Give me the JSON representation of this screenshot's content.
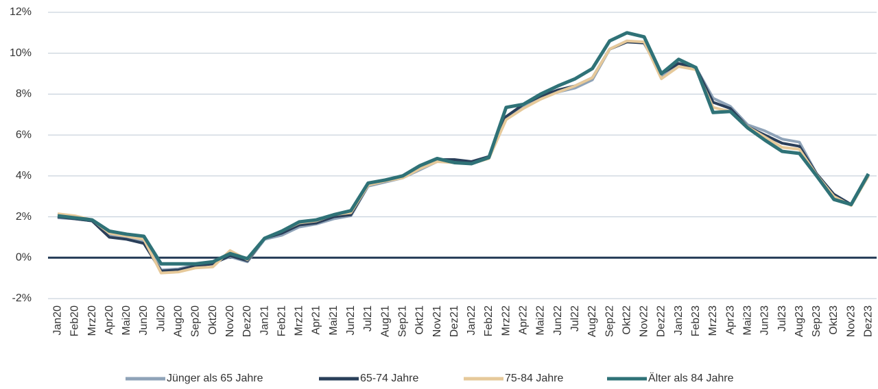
{
  "chart_data": {
    "type": "line",
    "categories": [
      "Jan20",
      "Feb20",
      "Mrz20",
      "Apr20",
      "Mai20",
      "Jun20",
      "Jul20",
      "Aug20",
      "Sep20",
      "Okt20",
      "Nov20",
      "Dez20",
      "Jan21",
      "Feb21",
      "Mrz21",
      "Apr21",
      "Mai21",
      "Jun21",
      "Jul21",
      "Aug21",
      "Sep21",
      "Okt21",
      "Nov21",
      "Dez21",
      "Jan22",
      "Feb22",
      "Mrz22",
      "Apr22",
      "Mai22",
      "Jun22",
      "Jul22",
      "Aug22",
      "Sep22",
      "Okt22",
      "Nov22",
      "Dez22",
      "Jan23",
      "Feb23",
      "Mrz23",
      "Apr23",
      "Mai23",
      "Jun23",
      "Jul23",
      "Aug23",
      "Sep23",
      "Okt23",
      "Nov23",
      "Dez23"
    ],
    "series": [
      {
        "name": "Jünger als 65 Jahre",
        "color": "#8fa3b8",
        "values": [
          1.95,
          1.9,
          1.8,
          1.1,
          1.0,
          0.8,
          -0.6,
          -0.55,
          -0.35,
          -0.25,
          0.05,
          -0.2,
          0.9,
          1.1,
          1.5,
          1.65,
          1.9,
          2.05,
          3.5,
          3.7,
          3.9,
          4.3,
          4.7,
          4.7,
          4.7,
          4.9,
          6.9,
          7.4,
          7.8,
          8.1,
          8.3,
          8.7,
          10.2,
          10.6,
          10.5,
          8.9,
          9.5,
          9.3,
          7.8,
          7.4,
          6.5,
          6.2,
          5.8,
          5.65,
          4.1,
          3.1,
          2.6,
          4.0
        ]
      },
      {
        "name": "65-74 Jahre",
        "color": "#2a3f5a",
        "values": [
          2.0,
          1.9,
          1.8,
          1.0,
          0.9,
          0.7,
          -0.65,
          -0.6,
          -0.4,
          -0.3,
          0.1,
          -0.15,
          0.95,
          1.2,
          1.6,
          1.7,
          2.0,
          2.1,
          3.55,
          3.75,
          3.95,
          4.4,
          4.8,
          4.8,
          4.7,
          4.95,
          6.9,
          7.5,
          7.9,
          8.2,
          8.4,
          8.8,
          10.2,
          10.55,
          10.5,
          9.0,
          9.5,
          9.3,
          7.6,
          7.3,
          6.4,
          6.0,
          5.6,
          5.45,
          4.1,
          3.1,
          2.6,
          4.0
        ]
      },
      {
        "name": "75-84 Jahre",
        "color": "#e6c99a",
        "values": [
          2.15,
          2.05,
          1.85,
          1.2,
          1.05,
          0.9,
          -0.75,
          -0.7,
          -0.5,
          -0.45,
          0.35,
          -0.1,
          0.95,
          1.3,
          1.7,
          1.8,
          2.1,
          2.2,
          3.55,
          3.75,
          3.9,
          4.35,
          4.7,
          4.65,
          4.6,
          4.85,
          6.75,
          7.3,
          7.75,
          8.1,
          8.4,
          8.8,
          10.2,
          10.6,
          10.55,
          8.75,
          9.35,
          9.2,
          7.35,
          7.15,
          6.4,
          5.9,
          5.4,
          5.3,
          4.05,
          3.0,
          2.55,
          4.0
        ]
      },
      {
        "name": "Älter als 84 Jahre",
        "color": "#2f7277",
        "values": [
          2.05,
          1.95,
          1.85,
          1.3,
          1.15,
          1.05,
          -0.3,
          -0.3,
          -0.3,
          -0.2,
          0.2,
          -0.05,
          0.95,
          1.3,
          1.75,
          1.85,
          2.1,
          2.3,
          3.65,
          3.8,
          4.0,
          4.5,
          4.85,
          4.65,
          4.6,
          4.9,
          7.35,
          7.5,
          8.0,
          8.4,
          8.75,
          9.25,
          10.6,
          11.0,
          10.8,
          9.0,
          9.7,
          9.3,
          7.1,
          7.15,
          6.35,
          5.75,
          5.2,
          5.1,
          4.0,
          2.85,
          2.6,
          4.1
        ]
      }
    ],
    "ylim": [
      -2,
      12
    ],
    "yticks": [
      {
        "value": -2,
        "label": "-2%"
      },
      {
        "value": 0,
        "label": "0%"
      },
      {
        "value": 2,
        "label": "2%"
      },
      {
        "value": 4,
        "label": "4%"
      },
      {
        "value": 6,
        "label": "6%"
      },
      {
        "value": 8,
        "label": "8%"
      },
      {
        "value": 10,
        "label": "10%"
      },
      {
        "value": 12,
        "label": "12%"
      }
    ],
    "grid": true,
    "legend": "bottom"
  }
}
